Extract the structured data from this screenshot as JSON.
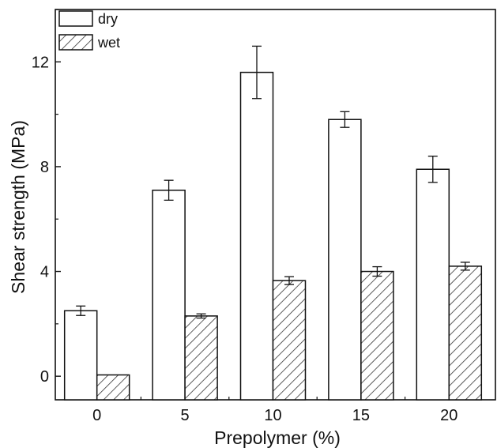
{
  "chart_data": {
    "type": "bar",
    "title": "",
    "xlabel": "Prepolymer (%)",
    "ylabel": "Shear strength (MPa)",
    "categories": [
      "0",
      "5",
      "10",
      "15",
      "20"
    ],
    "series": [
      {
        "name": "dry",
        "pattern": "open",
        "values": [
          2.5,
          7.1,
          11.6,
          9.8,
          7.9
        ],
        "errors": [
          0.18,
          0.38,
          1.0,
          0.3,
          0.5
        ]
      },
      {
        "name": "wet",
        "pattern": "hatched",
        "values": [
          0.05,
          2.3,
          3.65,
          4.0,
          4.2
        ],
        "errors": [
          0.0,
          0.08,
          0.15,
          0.18,
          0.15
        ]
      }
    ],
    "ylim": [
      -0.9,
      14
    ],
    "yticks": [
      "0",
      "4",
      "8",
      "12"
    ],
    "legend_position": "top-left",
    "grid": false,
    "colors": {
      "bar_stroke": "#111111",
      "bar_fill": "#ffffff",
      "hatch": "#333333"
    }
  }
}
